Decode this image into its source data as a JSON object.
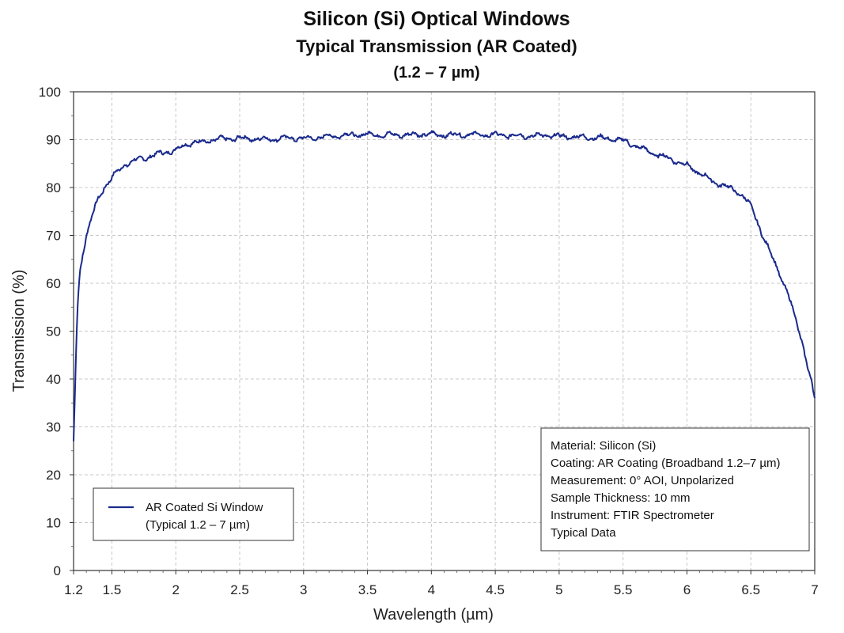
{
  "chart_data": {
    "type": "line",
    "title": "Silicon (Si) Optical Windows",
    "subtitle": "Typical Transmission (AR Coated)",
    "subtitle2": "(1.2 – 7 µm)",
    "xlabel": "Wavelength (µm)",
    "ylabel": "Transmission (%)",
    "xlim": [
      1.2,
      7
    ],
    "ylim": [
      0,
      100
    ],
    "x_ticks": [
      "1.2",
      "1.5",
      "2",
      "2.5",
      "3",
      "3.5",
      "4",
      "4.5",
      "5",
      "5.5",
      "6",
      "6.5",
      "7"
    ],
    "y_ticks": [
      "0",
      "10",
      "20",
      "30",
      "40",
      "50",
      "60",
      "70",
      "80",
      "90",
      "100"
    ],
    "grid": true,
    "line_color": "#1a2a8c",
    "legend": {
      "position": "bottom-left",
      "line1": "AR Coated Si Window",
      "line2": "(Typical 1.2 – 7 µm)"
    },
    "info_box": {
      "position": "bottom-right",
      "lines": [
        "Material:  Silicon (Si)",
        "Coating: AR Coating (Broadband 1.2–7 µm)",
        "Measurement: 0° AOI, Unpolarized",
        "Sample Thickness: 10 mm",
        "Instrument: FTIR Spectrometer",
        "Typical Data"
      ]
    },
    "series": [
      {
        "name": "AR Coated Si Window",
        "points": [
          [
            1.2,
            27
          ],
          [
            1.21,
            36
          ],
          [
            1.22,
            46
          ],
          [
            1.23,
            54
          ],
          [
            1.24,
            59
          ],
          [
            1.25,
            62.5
          ],
          [
            1.27,
            66
          ],
          [
            1.3,
            70
          ],
          [
            1.35,
            74.5
          ],
          [
            1.4,
            78
          ],
          [
            1.45,
            80.5
          ],
          [
            1.5,
            82
          ],
          [
            1.55,
            83.5
          ],
          [
            1.6,
            84.8
          ],
          [
            1.7,
            85.8
          ],
          [
            1.8,
            86.5
          ],
          [
            1.9,
            87.3
          ],
          [
            2.0,
            87.8
          ],
          [
            2.1,
            89.3
          ],
          [
            2.2,
            89.5
          ],
          [
            2.3,
            90.0
          ],
          [
            2.4,
            90.2
          ],
          [
            2.5,
            90.3
          ],
          [
            2.6,
            90.2
          ],
          [
            2.7,
            90.1
          ],
          [
            2.8,
            90.2
          ],
          [
            2.9,
            90.4
          ],
          [
            3.0,
            90.2
          ],
          [
            3.1,
            90.4
          ],
          [
            3.2,
            90.7
          ],
          [
            3.3,
            90.9
          ],
          [
            3.4,
            91.0
          ],
          [
            3.5,
            91.1
          ],
          [
            3.6,
            91.0
          ],
          [
            3.7,
            91.0
          ],
          [
            3.8,
            91.0
          ],
          [
            3.9,
            91.1
          ],
          [
            4.0,
            91.1
          ],
          [
            4.1,
            91.0
          ],
          [
            4.2,
            91.0
          ],
          [
            4.3,
            91.1
          ],
          [
            4.4,
            91.0
          ],
          [
            4.5,
            91.0
          ],
          [
            4.6,
            90.9
          ],
          [
            4.7,
            90.8
          ],
          [
            4.8,
            90.8
          ],
          [
            4.9,
            90.9
          ],
          [
            5.0,
            90.7
          ],
          [
            5.1,
            90.6
          ],
          [
            5.2,
            90.5
          ],
          [
            5.3,
            90.4
          ],
          [
            5.4,
            90.2
          ],
          [
            5.5,
            89.8
          ],
          [
            5.6,
            88.7
          ],
          [
            5.7,
            87.5
          ],
          [
            5.8,
            86.6
          ],
          [
            5.9,
            85.7
          ],
          [
            6.0,
            84.6
          ],
          [
            6.1,
            83.0
          ],
          [
            6.2,
            81.3
          ],
          [
            6.3,
            80.3
          ],
          [
            6.4,
            79.0
          ],
          [
            6.45,
            78.0
          ],
          [
            6.5,
            76.0
          ],
          [
            6.55,
            73.0
          ],
          [
            6.6,
            69.5
          ],
          [
            6.65,
            66.5
          ],
          [
            6.7,
            63.5
          ],
          [
            6.75,
            60.5
          ],
          [
            6.8,
            57.0
          ],
          [
            6.85,
            52.5
          ],
          [
            6.9,
            48.0
          ],
          [
            6.95,
            42.0
          ],
          [
            7.0,
            36.0
          ]
        ]
      }
    ]
  }
}
